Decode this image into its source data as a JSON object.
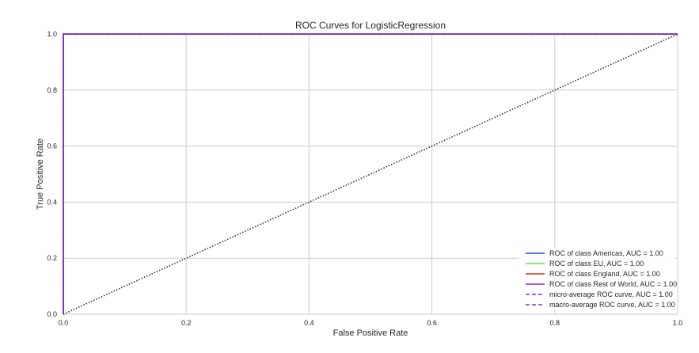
{
  "chart_data": {
    "type": "line",
    "title": "ROC Curves for LogisticRegression",
    "xlabel": "False Positive Rate",
    "ylabel": "True Positive Rate",
    "xlim": [
      0.0,
      1.0
    ],
    "ylim": [
      0.0,
      1.0
    ],
    "xticks": [
      "0.0",
      "0.2",
      "0.4",
      "0.6",
      "0.8",
      "1.0"
    ],
    "yticks": [
      "0.0",
      "0.2",
      "0.4",
      "0.6",
      "0.8",
      "1.0"
    ],
    "grid": true,
    "legend_position": "bottom-right",
    "series": [
      {
        "name": "ROC of class Americas, AUC = 1.00",
        "color": "#1f4fd8",
        "style": "solid",
        "x": [
          0,
          0,
          1
        ],
        "y": [
          0,
          1,
          1
        ]
      },
      {
        "name": "ROC of class EU, AUC = 1.00",
        "color": "#66e04a",
        "style": "solid",
        "x": [
          0,
          0,
          1
        ],
        "y": [
          0,
          1,
          1
        ]
      },
      {
        "name": "ROC of class England, AUC = 1.00",
        "color": "#d62b1f",
        "style": "solid",
        "x": [
          0,
          0,
          1
        ],
        "y": [
          0,
          1,
          1
        ]
      },
      {
        "name": "ROC of class Rest of World, AUC = 1.00",
        "color": "#8a2be2",
        "style": "solid",
        "x": [
          0,
          0,
          1
        ],
        "y": [
          0,
          1,
          1
        ]
      },
      {
        "name": "micro-average ROC curve, AUC = 1.00",
        "color": "#8a2be2",
        "style": "dashed",
        "x": [
          0,
          0,
          1
        ],
        "y": [
          0,
          1,
          1
        ]
      },
      {
        "name": "macro-average ROC curve, AUC = 1.00",
        "color": "#6a3fd0",
        "style": "dashed",
        "x": [
          0,
          0,
          1
        ],
        "y": [
          0,
          1,
          1
        ]
      }
    ],
    "reference_line": {
      "color": "#333333",
      "style": "dotted",
      "x": [
        0,
        1
      ],
      "y": [
        0,
        1
      ]
    }
  }
}
